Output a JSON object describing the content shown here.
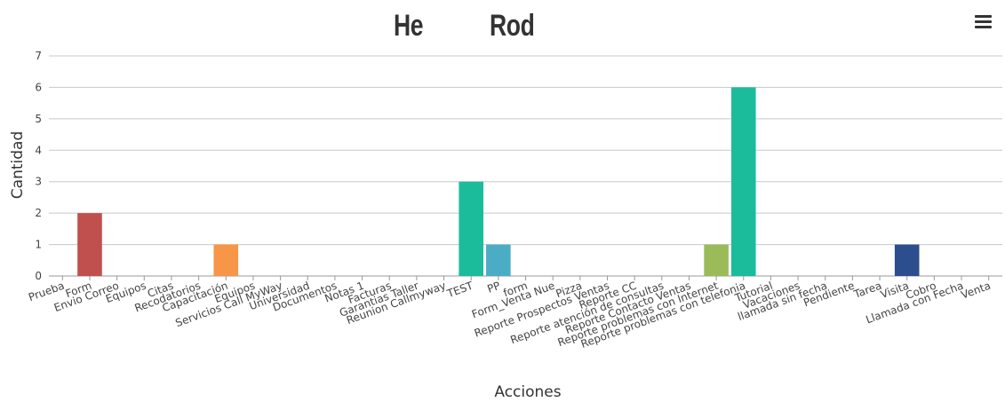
{
  "title": {
    "left": "He",
    "right": "Rod"
  },
  "menu": {
    "icon": "hamburger-menu-icon"
  },
  "chart_data": {
    "type": "bar",
    "xlabel": "Acciones",
    "ylabel": "Cantidad",
    "ylim": [
      0,
      7
    ],
    "yticks": [
      0,
      1,
      2,
      3,
      4,
      5,
      6,
      7
    ],
    "grid": true,
    "categories": [
      "Prueba",
      "Form",
      "Envio Correo",
      "Equipos",
      "Citas",
      "Recodatorios",
      "Capacitación",
      "Equipos",
      "Servicios Call MyWay",
      "Universidad",
      "Documentos",
      "Notas 1",
      "Facturas",
      "Garantias Taller",
      "Reunion Callmyway",
      "TEST",
      "PP",
      "form",
      "Form_Venta Nue",
      "Pizza",
      "Reporte Prospectos Ventas",
      "Reporte CC",
      "Reporte atención de consultas",
      "Reporte Contacto Ventas",
      "Reporte problemas con Internet",
      "Reporte problemas con telefonia",
      "Tutorial",
      "Vacaciones",
      "llamada sin fecha",
      "Pendiente",
      "Tarea",
      "Visita",
      "Cobro",
      "Llamada con Fecha",
      "Venta"
    ],
    "values": [
      0,
      2,
      0,
      0,
      0,
      0,
      1,
      0,
      0,
      0,
      0,
      0,
      0,
      0,
      0,
      3,
      1,
      0,
      0,
      0,
      0,
      0,
      0,
      0,
      1,
      6,
      0,
      0,
      0,
      0,
      0,
      1,
      0,
      0,
      0
    ],
    "colors": [
      "#2f7ed8",
      "#c0504d",
      "#000000",
      "#000000",
      "#000000",
      "#000000",
      "#f79646",
      "#000000",
      "#000000",
      "#000000",
      "#000000",
      "#000000",
      "#000000",
      "#000000",
      "#000000",
      "#1abc9c",
      "#4bacc6",
      "#000000",
      "#000000",
      "#000000",
      "#000000",
      "#000000",
      "#000000",
      "#000000",
      "#9bbb59",
      "#1abc9c",
      "#000000",
      "#000000",
      "#000000",
      "#000000",
      "#000000",
      "#2c4d8e",
      "#000000",
      "#000000",
      "#000000"
    ]
  }
}
